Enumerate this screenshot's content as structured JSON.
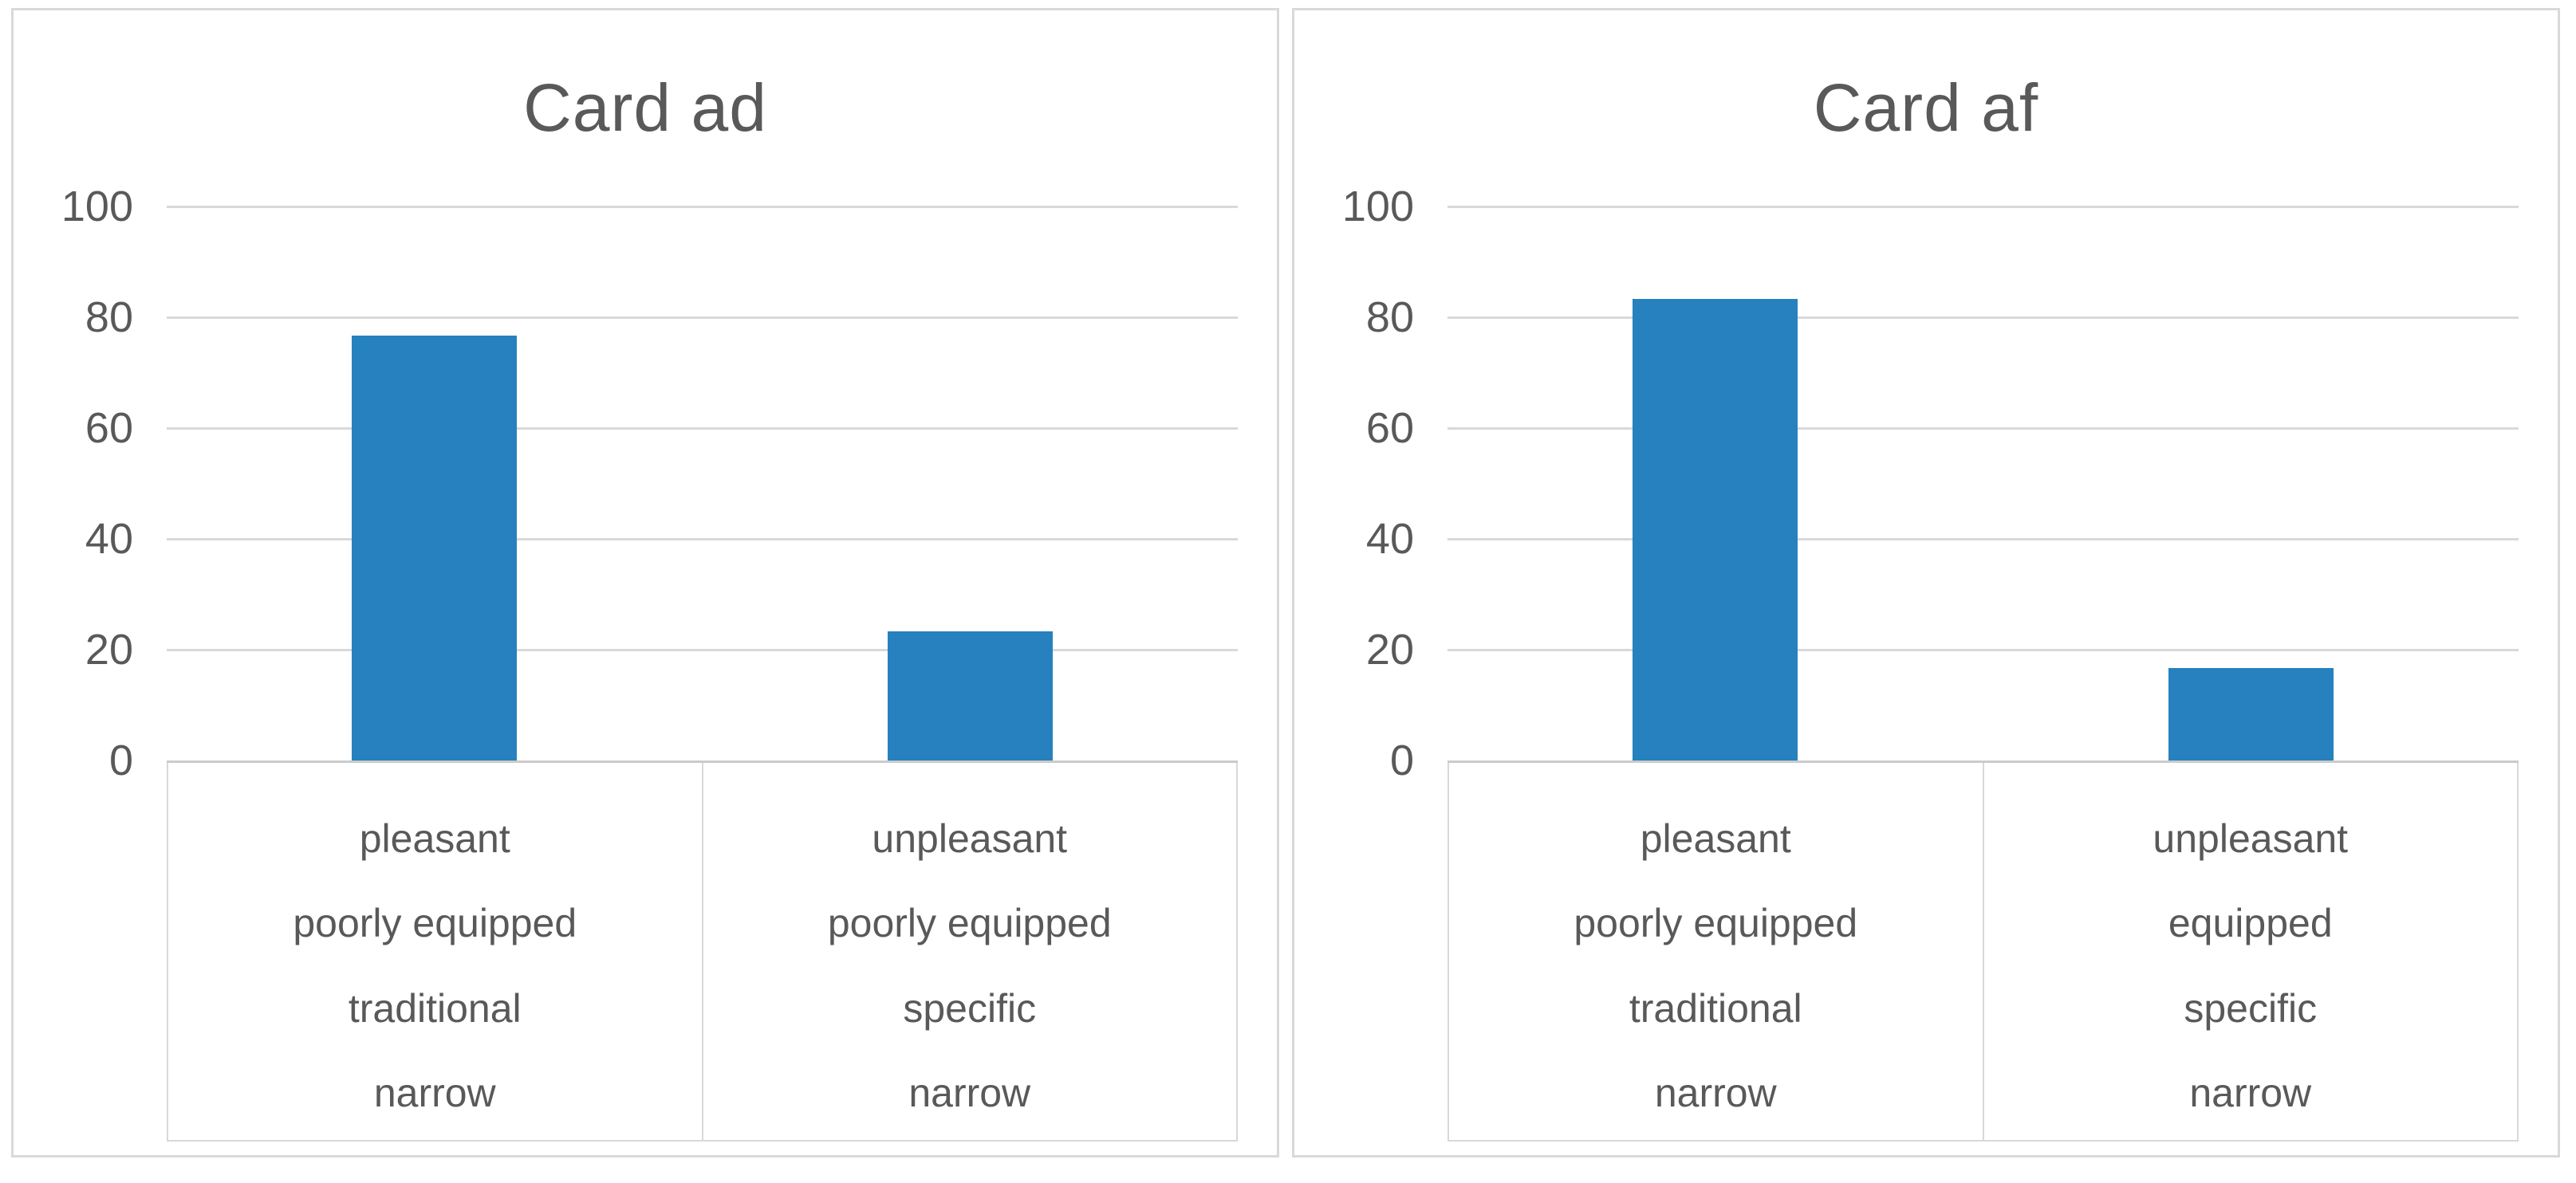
{
  "figure": {
    "background_color": "#ffffff",
    "panel_border_color": "#d9d9d9",
    "gridline_color": "#d9d9d9",
    "text_color": "#595959"
  },
  "chart_data": [
    {
      "type": "bar",
      "title": "Card ad",
      "categories": [
        [
          "pleasant",
          "poorly equipped",
          "traditional",
          "narrow"
        ],
        [
          "unpleasant",
          "poorly equipped",
          "specific",
          "narrow"
        ]
      ],
      "values": [
        76.7,
        23.3
      ],
      "yticks": [
        0,
        20,
        40,
        60,
        80,
        100
      ],
      "ylim": [
        0,
        100
      ],
      "xlabel": "",
      "ylabel": "",
      "grid": true,
      "legend": false,
      "bar_color": "#2681be"
    },
    {
      "type": "bar",
      "title": "Card af",
      "categories": [
        [
          "pleasant",
          "poorly equipped",
          "traditional",
          "narrow"
        ],
        [
          "unpleasant",
          "equipped",
          "specific",
          "narrow"
        ]
      ],
      "values": [
        83.3,
        16.7
      ],
      "yticks": [
        0,
        20,
        40,
        60,
        80,
        100
      ],
      "ylim": [
        0,
        100
      ],
      "xlabel": "",
      "ylabel": "",
      "grid": true,
      "legend": false,
      "bar_color": "#2681be"
    }
  ]
}
